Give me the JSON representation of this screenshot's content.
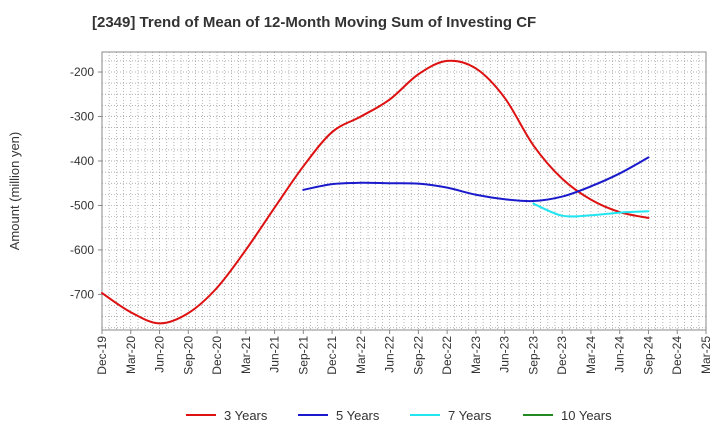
{
  "chart_data": {
    "type": "line",
    "title": "[2349]  Trend of Mean of 12-Month Moving Sum of Investing CF",
    "xlabel": "",
    "ylabel": "Amount (million yen)",
    "x_ticks": [
      "Dec-19",
      "Mar-20",
      "Jun-20",
      "Sep-20",
      "Dec-20",
      "Mar-21",
      "Jun-21",
      "Sep-21",
      "Dec-21",
      "Mar-22",
      "Jun-22",
      "Sep-22",
      "Dec-22",
      "Mar-23",
      "Jun-23",
      "Sep-23",
      "Dec-23",
      "Mar-24",
      "Jun-24",
      "Sep-24",
      "Dec-24",
      "Mar-25"
    ],
    "y_ticks": [
      -200,
      -300,
      -400,
      -500,
      -600,
      -700
    ],
    "ylim": [
      -780,
      -155
    ],
    "grid": true,
    "legend_position": "bottom",
    "series": [
      {
        "name": "3 Years",
        "color": "#dd1111",
        "points": [
          [
            0,
            -697
          ],
          [
            1,
            -740
          ],
          [
            2,
            -765
          ],
          [
            3,
            -742
          ],
          [
            4,
            -685
          ],
          [
            5,
            -600
          ],
          [
            6,
            -505
          ],
          [
            7,
            -412
          ],
          [
            8,
            -335
          ],
          [
            9,
            -300
          ],
          [
            10,
            -262
          ],
          [
            11,
            -205
          ],
          [
            12,
            -175
          ],
          [
            13,
            -192
          ],
          [
            14,
            -258
          ],
          [
            15,
            -365
          ],
          [
            16,
            -440
          ],
          [
            17,
            -487
          ],
          [
            18,
            -515
          ],
          [
            19,
            -528
          ]
        ]
      },
      {
        "name": "5 Years",
        "color": "#1a1acc",
        "points": [
          [
            7,
            -465
          ],
          [
            8,
            -452
          ],
          [
            9,
            -449
          ],
          [
            10,
            -450
          ],
          [
            11,
            -451
          ],
          [
            12,
            -460
          ],
          [
            13,
            -476
          ],
          [
            14,
            -486
          ],
          [
            15,
            -490
          ],
          [
            16,
            -480
          ],
          [
            17,
            -457
          ],
          [
            18,
            -428
          ],
          [
            19,
            -392
          ]
        ]
      },
      {
        "name": "7 Years",
        "color": "#22e5f0",
        "points": [
          [
            15,
            -496
          ],
          [
            16,
            -523
          ],
          [
            17,
            -522
          ],
          [
            18,
            -516
          ],
          [
            19,
            -513
          ]
        ]
      },
      {
        "name": "10 Years",
        "color": "#228822",
        "points": []
      }
    ]
  }
}
